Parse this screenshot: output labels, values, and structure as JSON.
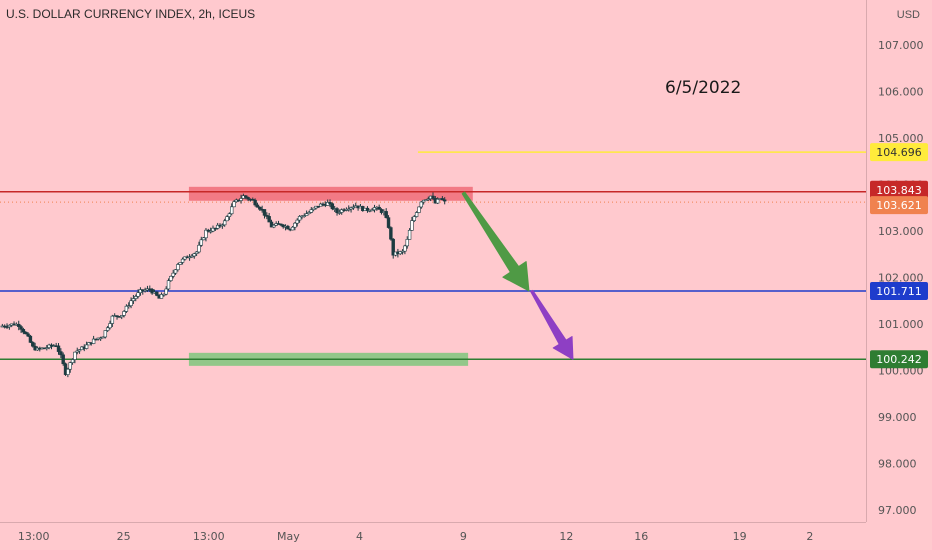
{
  "header": {
    "title": "U.S. DOLLAR CURRENCY INDEX, 2h, ICEUS",
    "currency": "USD"
  },
  "annotation": {
    "date_text": "6/5/2022"
  },
  "colors": {
    "background": "#ffc9ce",
    "candle": "#1d3a40",
    "resistance": "#c62828",
    "support": "#2e7d32",
    "midline": "#1e3ccc",
    "target": "#ffeb3b",
    "current": "#f0824f",
    "arrow1": "#4f9a45",
    "arrow2": "#8e3fc4",
    "zone_top": "#f06c78",
    "zone_bottom": "#7fc77c"
  },
  "chart_data": {
    "type": "candlestick",
    "title": "U.S. DOLLAR CURRENCY INDEX, 2h, ICEUS",
    "ylabel": "USD",
    "ylim": [
      96.8,
      107.6
    ],
    "y_ticks": [
      "107.000",
      "106.000",
      "105.000",
      "104.000",
      "103.000",
      "102.000",
      "101.000",
      "100.000",
      "99.000",
      "98.000",
      "97.000"
    ],
    "x_ticks": [
      "13:00",
      "25",
      "13:00",
      "May",
      "4",
      "9",
      "12",
      "16",
      "19",
      "2"
    ],
    "x_tick_indices": [
      3.6,
      13.2,
      22.3,
      30.8,
      38.4,
      49.5,
      60.5,
      68.5,
      79.0,
      86.5
    ],
    "x_range": [
      0,
      92.5
    ],
    "close_path": [
      [
        0,
        100.95
      ],
      [
        1,
        100.98
      ],
      [
        1.5,
        101.0
      ],
      [
        2,
        100.98
      ],
      [
        2.5,
        100.85
      ],
      [
        3,
        100.7
      ],
      [
        3.5,
        100.5
      ],
      [
        4,
        100.45
      ],
      [
        5,
        100.5
      ],
      [
        6,
        100.55
      ],
      [
        6.5,
        100.3
      ],
      [
        7,
        99.95
      ],
      [
        7.5,
        100.15
      ],
      [
        8,
        100.4
      ],
      [
        9,
        100.5
      ],
      [
        10,
        100.65
      ],
      [
        11,
        100.75
      ],
      [
        12,
        101.15
      ],
      [
        13,
        101.2
      ],
      [
        14,
        101.5
      ],
      [
        15,
        101.7
      ],
      [
        16,
        101.75
      ],
      [
        17,
        101.55
      ],
      [
        17.5,
        101.65
      ],
      [
        18,
        101.9
      ],
      [
        19,
        102.3
      ],
      [
        20,
        102.45
      ],
      [
        21,
        102.55
      ],
      [
        22,
        103.0
      ],
      [
        23,
        103.05
      ],
      [
        24,
        103.2
      ],
      [
        25,
        103.6
      ],
      [
        26,
        103.75
      ],
      [
        27,
        103.65
      ],
      [
        28,
        103.45
      ],
      [
        29,
        103.1
      ],
      [
        30,
        103.15
      ],
      [
        31,
        103.05
      ],
      [
        32,
        103.3
      ],
      [
        33,
        103.4
      ],
      [
        34,
        103.55
      ],
      [
        35,
        103.6
      ],
      [
        36,
        103.4
      ],
      [
        37,
        103.5
      ],
      [
        38,
        103.55
      ],
      [
        39,
        103.45
      ],
      [
        40,
        103.5
      ],
      [
        41,
        103.4
      ],
      [
        41.5,
        103.1
      ],
      [
        42,
        102.5
      ],
      [
        43,
        102.55
      ],
      [
        43.5,
        102.8
      ],
      [
        44,
        103.2
      ],
      [
        45,
        103.65
      ],
      [
        46,
        103.75
      ],
      [
        46.5,
        103.6
      ],
      [
        47,
        103.7
      ],
      [
        47.5,
        103.62
      ]
    ],
    "levels": [
      {
        "label": "104.696",
        "value": 104.696
      },
      {
        "label": "103.843",
        "value": 103.843
      },
      {
        "label": "103.621",
        "value": 103.621
      },
      {
        "label": "101.711",
        "value": 101.711
      },
      {
        "label": "100.242",
        "value": 100.242
      }
    ],
    "zones": [
      {
        "name": "resistance-zone",
        "from": 103.65,
        "to": 103.95,
        "x_start": 20.5,
        "x_end": 50.5
      },
      {
        "name": "support-zone",
        "from": 100.1,
        "to": 100.38,
        "x_start": 20.5,
        "x_end": 50
      }
    ],
    "projection": [
      {
        "from_x": 49.5,
        "from_y": 103.82,
        "to_x": 56.5,
        "to_y": 101.71
      },
      {
        "from_x": 56.8,
        "from_y": 101.71,
        "to_x": 61.2,
        "to_y": 100.24
      }
    ],
    "grid": false
  }
}
